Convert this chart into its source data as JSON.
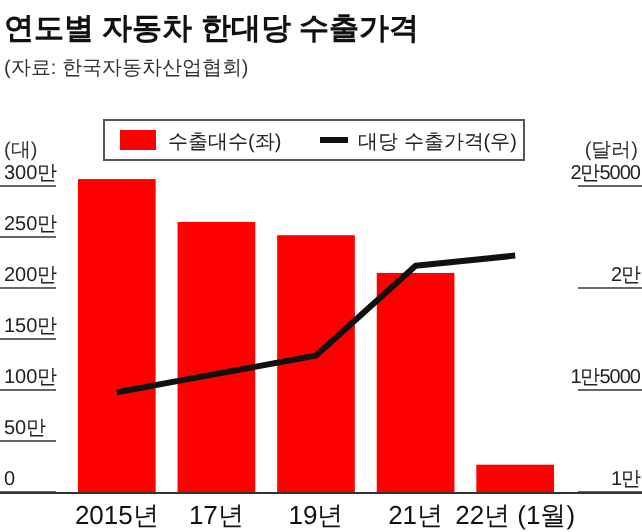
{
  "chart_data": {
    "type": "bar",
    "title": "연도별 자동차 한대당 수출가격",
    "subtitle": "(자료: 한국자동차산업협회)",
    "ylabel": "(대)",
    "y2label": "(달러)",
    "categories": [
      "2015년",
      "17년",
      "19년",
      "21년",
      "22년 (1월)"
    ],
    "series": [
      {
        "name": "수출대수(좌)",
        "color": "#ff0000",
        "values": [
          295,
          253,
          240,
          203,
          15
        ]
      },
      {
        "name": "대당 수출가격(우)",
        "type": "line",
        "axis": "y2",
        "color": "#111111",
        "values": [
          1.43,
          1.52,
          1.61,
          2.05,
          2.1
        ]
      }
    ],
    "ylim": [
      0,
      300
    ],
    "yticks": [
      {
        "value": 0,
        "label": "0"
      },
      {
        "value": 50,
        "label": "50만"
      },
      {
        "value": 100,
        "label": "100만"
      },
      {
        "value": 150,
        "label": "150만"
      },
      {
        "value": 200,
        "label": "200만"
      },
      {
        "value": 250,
        "label": "250만"
      },
      {
        "value": 300,
        "label": "300만"
      }
    ],
    "y2lim": [
      1,
      2.5
    ],
    "y2ticks": [
      {
        "value": 1,
        "label": "1만"
      },
      {
        "value": 1.5,
        "label": "1만5000"
      },
      {
        "value": 2,
        "label": "2만"
      },
      {
        "value": 2.5,
        "label": "2만5000"
      }
    ],
    "legend": "top",
    "grid": false,
    "marker": "none",
    "line_style": "solid"
  }
}
